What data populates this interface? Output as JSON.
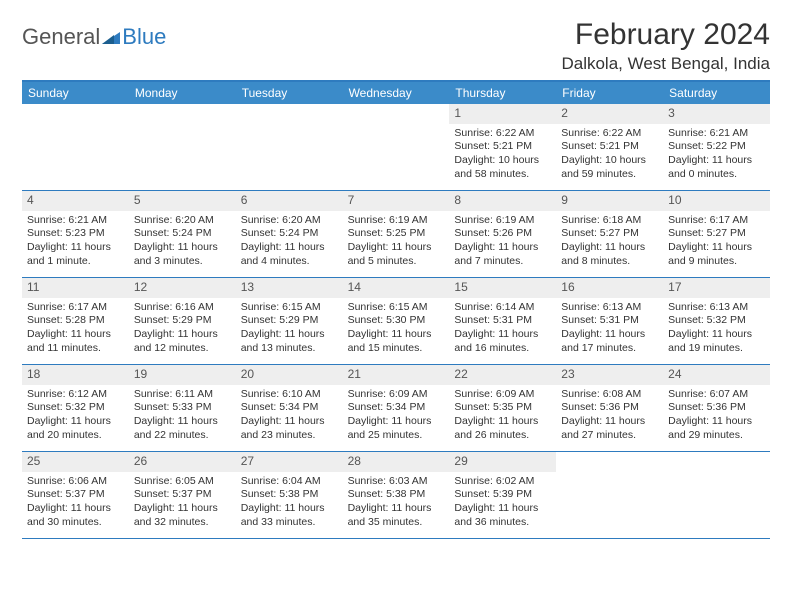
{
  "logo": {
    "text_general": "General",
    "text_blue": "Blue"
  },
  "title": "February 2024",
  "location": "Dalkola, West Bengal, India",
  "header_bg": "#3b8bc9",
  "border_color": "#2e7bbf",
  "daynum_bg": "#eeeeee",
  "weekdays": [
    "Sunday",
    "Monday",
    "Tuesday",
    "Wednesday",
    "Thursday",
    "Friday",
    "Saturday"
  ],
  "weeks": [
    [
      {
        "n": "",
        "sr": "",
        "ss": "",
        "dl": ""
      },
      {
        "n": "",
        "sr": "",
        "ss": "",
        "dl": ""
      },
      {
        "n": "",
        "sr": "",
        "ss": "",
        "dl": ""
      },
      {
        "n": "",
        "sr": "",
        "ss": "",
        "dl": ""
      },
      {
        "n": "1",
        "sr": "Sunrise: 6:22 AM",
        "ss": "Sunset: 5:21 PM",
        "dl": "Daylight: 10 hours and 58 minutes."
      },
      {
        "n": "2",
        "sr": "Sunrise: 6:22 AM",
        "ss": "Sunset: 5:21 PM",
        "dl": "Daylight: 10 hours and 59 minutes."
      },
      {
        "n": "3",
        "sr": "Sunrise: 6:21 AM",
        "ss": "Sunset: 5:22 PM",
        "dl": "Daylight: 11 hours and 0 minutes."
      }
    ],
    [
      {
        "n": "4",
        "sr": "Sunrise: 6:21 AM",
        "ss": "Sunset: 5:23 PM",
        "dl": "Daylight: 11 hours and 1 minute."
      },
      {
        "n": "5",
        "sr": "Sunrise: 6:20 AM",
        "ss": "Sunset: 5:24 PM",
        "dl": "Daylight: 11 hours and 3 minutes."
      },
      {
        "n": "6",
        "sr": "Sunrise: 6:20 AM",
        "ss": "Sunset: 5:24 PM",
        "dl": "Daylight: 11 hours and 4 minutes."
      },
      {
        "n": "7",
        "sr": "Sunrise: 6:19 AM",
        "ss": "Sunset: 5:25 PM",
        "dl": "Daylight: 11 hours and 5 minutes."
      },
      {
        "n": "8",
        "sr": "Sunrise: 6:19 AM",
        "ss": "Sunset: 5:26 PM",
        "dl": "Daylight: 11 hours and 7 minutes."
      },
      {
        "n": "9",
        "sr": "Sunrise: 6:18 AM",
        "ss": "Sunset: 5:27 PM",
        "dl": "Daylight: 11 hours and 8 minutes."
      },
      {
        "n": "10",
        "sr": "Sunrise: 6:17 AM",
        "ss": "Sunset: 5:27 PM",
        "dl": "Daylight: 11 hours and 9 minutes."
      }
    ],
    [
      {
        "n": "11",
        "sr": "Sunrise: 6:17 AM",
        "ss": "Sunset: 5:28 PM",
        "dl": "Daylight: 11 hours and 11 minutes."
      },
      {
        "n": "12",
        "sr": "Sunrise: 6:16 AM",
        "ss": "Sunset: 5:29 PM",
        "dl": "Daylight: 11 hours and 12 minutes."
      },
      {
        "n": "13",
        "sr": "Sunrise: 6:15 AM",
        "ss": "Sunset: 5:29 PM",
        "dl": "Daylight: 11 hours and 13 minutes."
      },
      {
        "n": "14",
        "sr": "Sunrise: 6:15 AM",
        "ss": "Sunset: 5:30 PM",
        "dl": "Daylight: 11 hours and 15 minutes."
      },
      {
        "n": "15",
        "sr": "Sunrise: 6:14 AM",
        "ss": "Sunset: 5:31 PM",
        "dl": "Daylight: 11 hours and 16 minutes."
      },
      {
        "n": "16",
        "sr": "Sunrise: 6:13 AM",
        "ss": "Sunset: 5:31 PM",
        "dl": "Daylight: 11 hours and 17 minutes."
      },
      {
        "n": "17",
        "sr": "Sunrise: 6:13 AM",
        "ss": "Sunset: 5:32 PM",
        "dl": "Daylight: 11 hours and 19 minutes."
      }
    ],
    [
      {
        "n": "18",
        "sr": "Sunrise: 6:12 AM",
        "ss": "Sunset: 5:32 PM",
        "dl": "Daylight: 11 hours and 20 minutes."
      },
      {
        "n": "19",
        "sr": "Sunrise: 6:11 AM",
        "ss": "Sunset: 5:33 PM",
        "dl": "Daylight: 11 hours and 22 minutes."
      },
      {
        "n": "20",
        "sr": "Sunrise: 6:10 AM",
        "ss": "Sunset: 5:34 PM",
        "dl": "Daylight: 11 hours and 23 minutes."
      },
      {
        "n": "21",
        "sr": "Sunrise: 6:09 AM",
        "ss": "Sunset: 5:34 PM",
        "dl": "Daylight: 11 hours and 25 minutes."
      },
      {
        "n": "22",
        "sr": "Sunrise: 6:09 AM",
        "ss": "Sunset: 5:35 PM",
        "dl": "Daylight: 11 hours and 26 minutes."
      },
      {
        "n": "23",
        "sr": "Sunrise: 6:08 AM",
        "ss": "Sunset: 5:36 PM",
        "dl": "Daylight: 11 hours and 27 minutes."
      },
      {
        "n": "24",
        "sr": "Sunrise: 6:07 AM",
        "ss": "Sunset: 5:36 PM",
        "dl": "Daylight: 11 hours and 29 minutes."
      }
    ],
    [
      {
        "n": "25",
        "sr": "Sunrise: 6:06 AM",
        "ss": "Sunset: 5:37 PM",
        "dl": "Daylight: 11 hours and 30 minutes."
      },
      {
        "n": "26",
        "sr": "Sunrise: 6:05 AM",
        "ss": "Sunset: 5:37 PM",
        "dl": "Daylight: 11 hours and 32 minutes."
      },
      {
        "n": "27",
        "sr": "Sunrise: 6:04 AM",
        "ss": "Sunset: 5:38 PM",
        "dl": "Daylight: 11 hours and 33 minutes."
      },
      {
        "n": "28",
        "sr": "Sunrise: 6:03 AM",
        "ss": "Sunset: 5:38 PM",
        "dl": "Daylight: 11 hours and 35 minutes."
      },
      {
        "n": "29",
        "sr": "Sunrise: 6:02 AM",
        "ss": "Sunset: 5:39 PM",
        "dl": "Daylight: 11 hours and 36 minutes."
      },
      {
        "n": "",
        "sr": "",
        "ss": "",
        "dl": ""
      },
      {
        "n": "",
        "sr": "",
        "ss": "",
        "dl": ""
      }
    ]
  ]
}
